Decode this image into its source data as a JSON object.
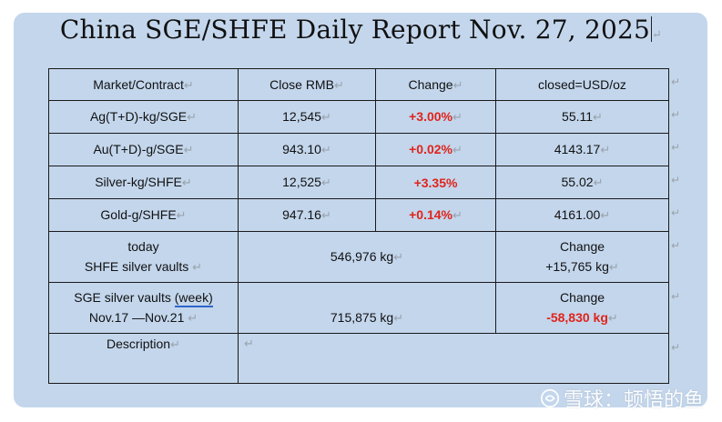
{
  "title": "China SGE/SHFE Daily Report Nov. 27, 2025",
  "para_mark": "↵",
  "table": {
    "headers": [
      "Market/Contract",
      "Close RMB",
      "Change",
      "closed=USD/oz"
    ],
    "rows": [
      {
        "contract": "Ag(T+D)-kg/SGE",
        "close": "12,545",
        "change": "+3.00%",
        "usd": "55.11"
      },
      {
        "contract": "Au(T+D)-g/SGE",
        "close": "943.10",
        "change": "+0.02%",
        "usd": "4143.17"
      },
      {
        "contract": "Silver-kg/SHFE",
        "close": "12,525",
        "change": "+3.35%",
        "usd": "55.02"
      },
      {
        "contract": "Gold-g/SHFE",
        "close": "947.16",
        "change": "+0.14%",
        "usd": "4161.00"
      }
    ],
    "shfe_vault": {
      "label_line1": "today",
      "label_line2": "SHFE silver vaults",
      "value": "546,976 kg",
      "change_label": "Change",
      "change_value": "+15,765 kg"
    },
    "sge_vault": {
      "label_line1_prefix": "SGE silver vaults ",
      "label_line1_week": "(week)",
      "label_line2": "Nov.17 —Nov.21",
      "value": "715,875 kg",
      "change_label": "Change",
      "change_value": "-58,830 kg"
    },
    "description_label": "Description",
    "description_text": ""
  },
  "watermark": {
    "text": "雪球：顿悟的鱼"
  },
  "colors": {
    "card_bg": "#c3d6ec",
    "positive_change": "#e0241b",
    "border": "#1a1a1a"
  }
}
